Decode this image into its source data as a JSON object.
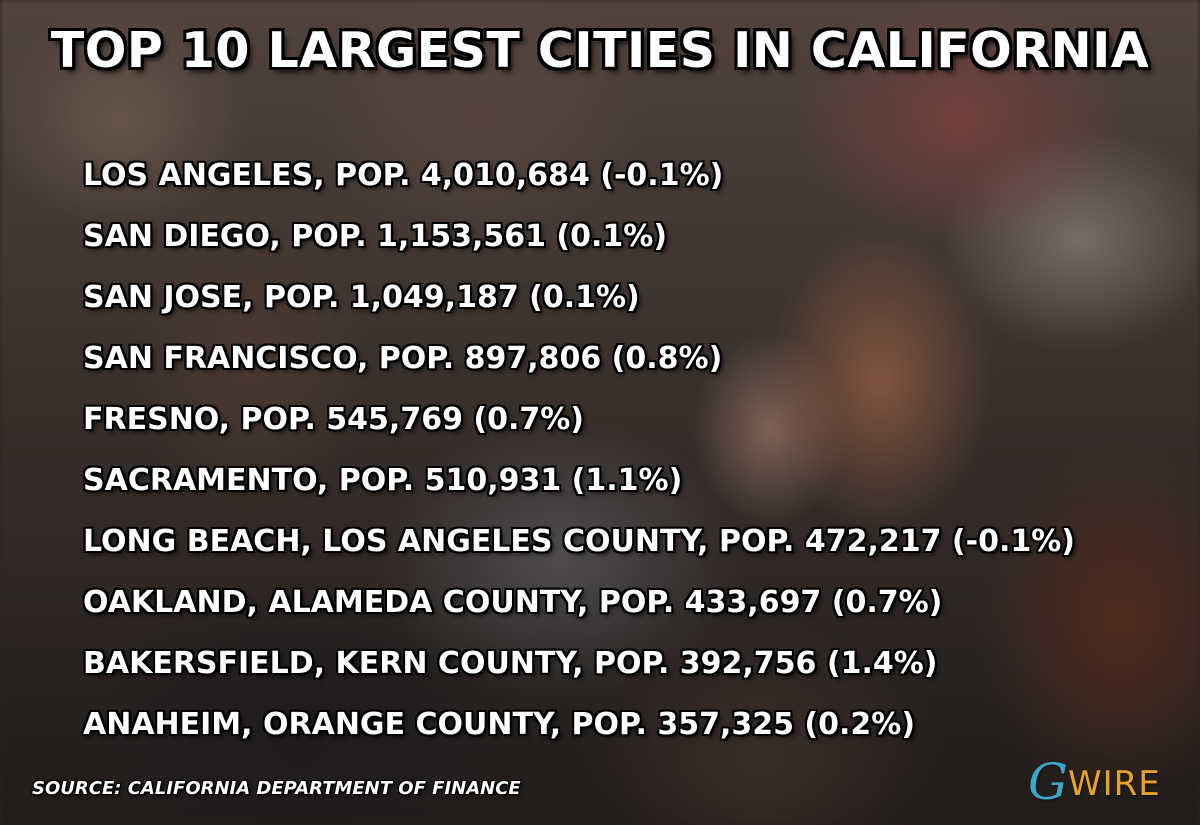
{
  "title": "TOP 10 LARGEST CITIES IN CALIFORNIA",
  "cities": [
    "LOS ANGELES, POP. 4,010,684 (-0.1%)",
    "SAN DIEGO, POP. 1,153,561 (0.1%)",
    "SAN JOSE, POP. 1,049,187 (0.1%)",
    "SAN FRANCISCO, POP. 897,806 (0.8%)",
    "FRESNO, POP. 545,769 (0.7%)",
    "SACRAMENTO, POP. 510,931 (1.1%)",
    "LONG BEACH, LOS ANGELES COUNTY, POP. 472,217 (-0.1%)",
    "OAKLAND, ALAMEDA COUNTY, POP. 433,697 (0.7%)",
    "BAKERSFIELD, KERN COUNTY, POP. 392,756 (1.4%)",
    "ANAHEIM, ORANGE COUNTY, POP. 357,325 (0.2%)"
  ],
  "source": "SOURCE: CALIFORNIA DEPARTMENT OF FINANCE",
  "logo": {
    "mark": "G",
    "word": "WIRE",
    "mark_color": "#3aa6c9",
    "word_color": "#e6a32a"
  }
}
